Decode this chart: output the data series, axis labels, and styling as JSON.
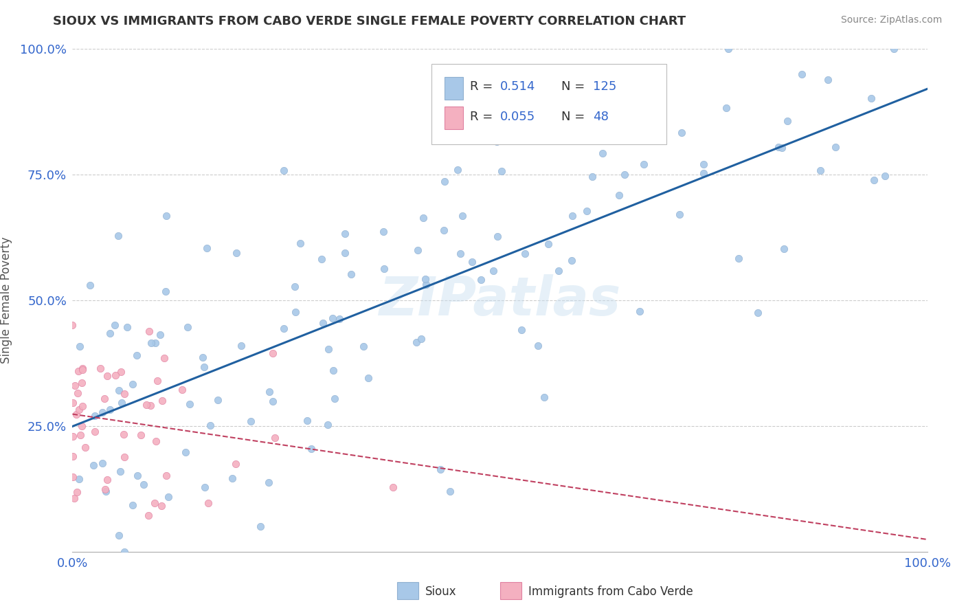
{
  "title": "SIOUX VS IMMIGRANTS FROM CABO VERDE SINGLE FEMALE POVERTY CORRELATION CHART",
  "source": "Source: ZipAtlas.com",
  "ylabel": "Single Female Poverty",
  "xlim": [
    0,
    1
  ],
  "ylim": [
    0,
    1
  ],
  "sioux_color": "#a8c8e8",
  "cabo_verde_color": "#f4b0c0",
  "sioux_R": 0.514,
  "sioux_N": 125,
  "cabo_verde_R": 0.055,
  "cabo_verde_N": 48,
  "sioux_line_color": "#2060a0",
  "cabo_verde_line_color": "#c04060",
  "grid_color": "#cccccc",
  "watermark": "ZIPatlas",
  "legend_R_color": "#3366cc",
  "title_color": "#333333",
  "axis_label_color": "#3366cc"
}
